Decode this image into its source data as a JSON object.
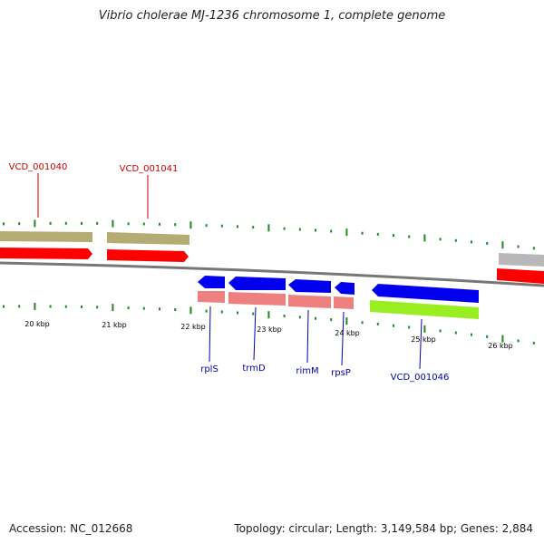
{
  "title": "Vibrio cholerae MJ-1236 chromosome 1, complete genome",
  "colors": {
    "top_label": "#cc0000",
    "bottom_label": "#0000aa",
    "tick": "#228822",
    "strand_tan": "#b5ac74",
    "strand_red": "#ff0000",
    "strand_grey": "#b8b8b8",
    "gene_blue": "#0000ee",
    "gene_pink": "#ee8080",
    "gene_lime": "#99ee22",
    "backbone": "#777777"
  },
  "scale_labels": [
    "20 kbp",
    "21 kbp",
    "22 kbp",
    "23 kbp",
    "24 kbp",
    "25 kbp",
    "26 kbp"
  ],
  "top_labels": [
    "VCD_001040",
    "VCD_001041"
  ],
  "bottom_labels": [
    "rplS",
    "trmD",
    "rimM",
    "rpsP",
    "VCD_001046"
  ],
  "footer": {
    "accession": "Accession: NC_012668",
    "stats": "Topology: circular; Length: 3,149,584 bp; Genes: 2,884"
  }
}
